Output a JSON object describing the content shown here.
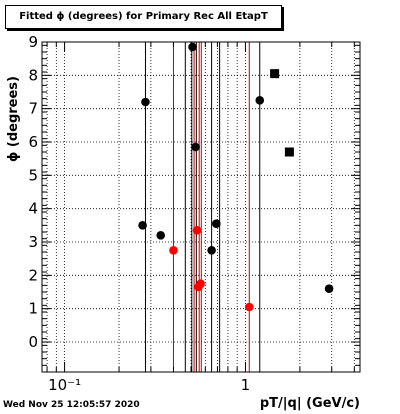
{
  "chart_data": {
    "type": "scatter",
    "title": "Fitted ϕ (degrees) for Primary Rec All EtapT",
    "xlabel": "pT/|q| (GeV/c)",
    "ylabel": "ϕ (degrees)",
    "x_scale": "log",
    "xlim": [
      0.075,
      4.3
    ],
    "ylim": [
      -0.9,
      9.0
    ],
    "x_major_ticks": [
      {
        "value": 0.1,
        "label": "10⁻¹"
      },
      {
        "value": 1,
        "label": "1"
      }
    ],
    "y_ticks": [
      0,
      1,
      2,
      3,
      4,
      5,
      6,
      7,
      8,
      9
    ],
    "grid": true,
    "series": [
      {
        "color": "#000000",
        "marker": "circle",
        "points": [
          {
            "x": 0.28,
            "y": 7.2
          },
          {
            "x": 0.51,
            "y": 8.85
          },
          {
            "x": 0.53,
            "y": 5.85
          },
          {
            "x": 0.27,
            "y": 3.5
          },
          {
            "x": 0.34,
            "y": 3.2
          },
          {
            "x": 0.69,
            "y": 3.55
          },
          {
            "x": 0.65,
            "y": 2.75
          },
          {
            "x": 1.2,
            "y": 7.25
          },
          {
            "x": 2.9,
            "y": 1.6
          }
        ]
      },
      {
        "color": "#ff0000",
        "marker": "circle",
        "points": [
          {
            "x": 0.4,
            "y": 2.75
          },
          {
            "x": 0.54,
            "y": 3.35
          },
          {
            "x": 0.55,
            "y": 1.65
          },
          {
            "x": 0.565,
            "y": 1.75
          },
          {
            "x": 1.05,
            "y": 1.05
          }
        ]
      },
      {
        "color": "#000000",
        "marker": "square",
        "points": [
          {
            "x": 1.45,
            "y": 8.05
          },
          {
            "x": 1.75,
            "y": 5.7
          }
        ]
      }
    ],
    "vertical_lines": [
      {
        "x": 0.28,
        "color": "#000000"
      },
      {
        "x": 0.4,
        "color": "#cc0000"
      },
      {
        "x": 0.465,
        "color": "#000000"
      },
      {
        "x": 0.505,
        "color": "#000000"
      },
      {
        "x": 0.52,
        "color": "#cc0000"
      },
      {
        "x": 0.535,
        "color": "#000000"
      },
      {
        "x": 0.555,
        "color": "#cc0000"
      },
      {
        "x": 0.57,
        "color": "#cc0000"
      },
      {
        "x": 0.65,
        "color": "#000000"
      },
      {
        "x": 0.72,
        "color": "#000000"
      },
      {
        "x": 1.05,
        "color": "#cc0000"
      },
      {
        "x": 1.2,
        "color": "#000000"
      }
    ]
  },
  "timestamp": "Wed Nov 25 12:05:57 2020"
}
